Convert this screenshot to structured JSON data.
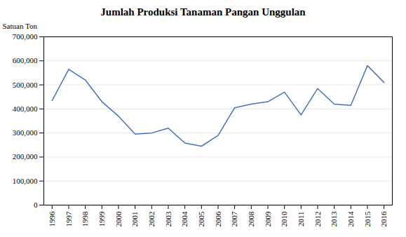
{
  "chart_data": {
    "type": "line",
    "title": "Jumlah Produksi Tanaman Pangan Unggulan",
    "ylabel": "Satuan Ton",
    "x": [
      1996,
      1997,
      1998,
      1999,
      2000,
      2001,
      2002,
      2003,
      2004,
      2005,
      2006,
      2007,
      2008,
      2009,
      2010,
      2011,
      2012,
      2013,
      2014,
      2015,
      2016
    ],
    "values": [
      435000,
      565000,
      520000,
      430000,
      370000,
      295000,
      300000,
      320000,
      258000,
      245000,
      290000,
      405000,
      420000,
      430000,
      470000,
      375000,
      485000,
      420000,
      415000,
      580000,
      510000
    ],
    "color": "#4472C4",
    "xlim": [
      1995.5,
      2016.5
    ],
    "xticks": [
      1996,
      1997,
      1998,
      1999,
      2000,
      2001,
      2002,
      2003,
      2004,
      2005,
      2006,
      2007,
      2008,
      2009,
      2010,
      2011,
      2012,
      2013,
      2014,
      2015,
      2016
    ],
    "ylim": [
      0,
      700000
    ],
    "yticks": [
      0,
      {
        "value": 100000,
        "label": "100,000"
      },
      {
        "value": 200000,
        "label": "200,000"
      },
      {
        "value": 300000,
        "label": "300,000"
      },
      {
        "value": 400000,
        "label": "400,000"
      },
      {
        "value": 500000,
        "label": "500,000"
      },
      {
        "value": 600000,
        "label": "600,000"
      },
      {
        "value": 700000,
        "label": "700,000"
      }
    ],
    "grid": true
  }
}
